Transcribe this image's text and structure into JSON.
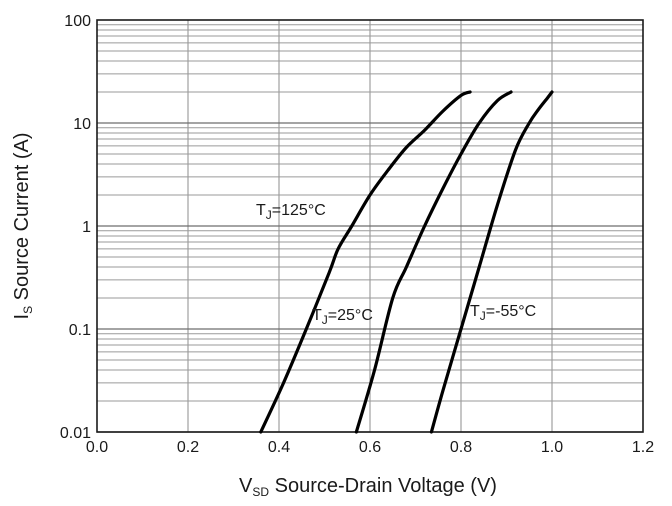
{
  "chart_data": {
    "type": "line",
    "x_axis": {
      "label_main": "V",
      "label_sub": "SD",
      "label_rest": " Source-Drain Voltage (V)",
      "range": [
        0.0,
        1.2
      ],
      "ticks": [
        0.0,
        0.2,
        0.4,
        0.6,
        0.8,
        1.0,
        1.2
      ],
      "tick_labels": [
        "0.0",
        "0.2",
        "0.4",
        "0.6",
        "0.8",
        "1.0",
        "1.2"
      ]
    },
    "y_axis": {
      "label_main": "I",
      "label_sub": "S",
      "label_rest": "  Source Current (A)",
      "scale": "log",
      "range": [
        0.01,
        100
      ],
      "ticks": [
        0.01,
        0.1,
        1,
        10,
        100
      ],
      "tick_labels": [
        "0.01",
        "0.1",
        "1",
        "10",
        "100"
      ]
    },
    "grid": true,
    "series": [
      {
        "name_main": "T",
        "name_sub": "J",
        "name_rest": "=125°C",
        "x": [
          0.36,
          0.41,
          0.46,
          0.51,
          0.53,
          0.56,
          0.6,
          0.64,
          0.68,
          0.72,
          0.76,
          0.8,
          0.82
        ],
        "y": [
          0.01,
          0.03,
          0.1,
          0.35,
          0.6,
          1.0,
          2.0,
          3.5,
          5.8,
          8.5,
          13,
          18.5,
          20
        ]
      },
      {
        "name_main": "T",
        "name_sub": "J",
        "name_rest": "=25°C",
        "x": [
          0.57,
          0.61,
          0.65,
          0.68,
          0.72,
          0.76,
          0.8,
          0.84,
          0.88,
          0.91
        ],
        "y": [
          0.01,
          0.04,
          0.2,
          0.4,
          1.0,
          2.3,
          5.0,
          10.0,
          16.5,
          20
        ]
      },
      {
        "name_main": "T",
        "name_sub": "J",
        "name_rest": "=-55°C",
        "x": [
          0.735,
          0.76,
          0.8,
          0.84,
          0.88,
          0.92,
          0.95,
          0.97,
          0.99,
          1.0
        ],
        "y": [
          0.01,
          0.025,
          0.1,
          0.4,
          1.6,
          5.5,
          10.0,
          13.5,
          17.5,
          20
        ]
      }
    ]
  }
}
